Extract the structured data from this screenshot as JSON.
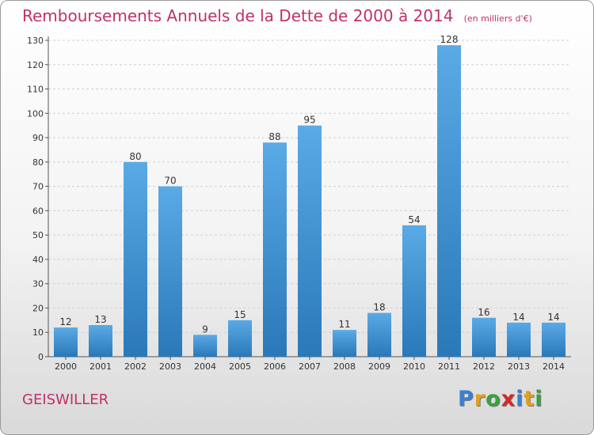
{
  "title": "Remboursements Annuels de la Dette de 2000 à 2014",
  "unit_label": "(en milliers d'€)",
  "place_name": "GEISWILLER",
  "logo": {
    "letters": [
      "P",
      "r",
      "o",
      "x",
      "i",
      "t",
      "i"
    ],
    "colors": [
      "#3a7fd0",
      "#e0a020",
      "#3aa040",
      "#d02a2a",
      "#3a7fd0",
      "#e0a020",
      "#3aa040"
    ]
  },
  "colors": {
    "title": "#c0306a",
    "bar_light": "#5aaae6",
    "bar_dark": "#2a78b8",
    "grid": "#d0d0d0"
  },
  "chart_data": {
    "type": "bar",
    "title": "Remboursements Annuels de la Dette de 2000 à 2014",
    "xlabel": "",
    "ylabel": "",
    "categories": [
      "2000",
      "2001",
      "2002",
      "2003",
      "2004",
      "2005",
      "2006",
      "2007",
      "2008",
      "2009",
      "2010",
      "2011",
      "2012",
      "2013",
      "2014"
    ],
    "values": [
      12,
      13,
      80,
      70,
      9,
      15,
      88,
      95,
      11,
      18,
      54,
      128,
      16,
      14,
      14
    ],
    "ylim": [
      0,
      130
    ],
    "yticks": [
      0,
      10,
      20,
      30,
      40,
      50,
      60,
      70,
      80,
      90,
      100,
      110,
      120,
      130
    ],
    "grid": true,
    "show_value_labels": true
  }
}
